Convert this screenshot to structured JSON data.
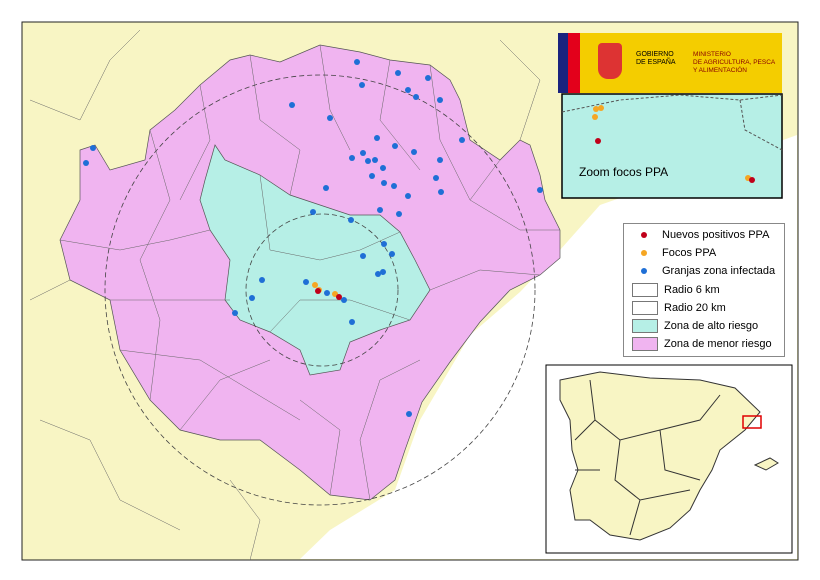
{
  "logo": {
    "line1": "GOBIERNO",
    "line2": "DE ESPAÑA",
    "ministry1": "MINISTERIO",
    "ministry2": "DE AGRICULTURA, PESCA",
    "ministry3": "Y ALIMENTACIÓN"
  },
  "zoom_inset": {
    "label": "Zoom focos PPA"
  },
  "legend": [
    {
      "label": "Nuevos positivos PPA",
      "symbol": "dot",
      "color": "#c0001a"
    },
    {
      "label": "Focos PPA",
      "symbol": "dot",
      "color": "#f5a623"
    },
    {
      "label": "Granjas zona infectada",
      "symbol": "dot",
      "color": "#1f6fd6"
    },
    {
      "label": "Radio 6 km",
      "symbol": "box",
      "color": "#ffffff"
    },
    {
      "label": "Radio 20 km",
      "symbol": "box",
      "color": "#ffffff"
    },
    {
      "label": "Zona de alto riesgo",
      "symbol": "box",
      "color": "#b6efe6"
    },
    {
      "label": "Zona de menor riesgo",
      "symbol": "box",
      "color": "#f0b4f0"
    }
  ],
  "colors": {
    "land": "#f8f5c4",
    "sea": "#ffffff",
    "high_risk": "#b6efe6",
    "low_risk": "#f0b4f0",
    "inset_highlight": "#e00000"
  }
}
